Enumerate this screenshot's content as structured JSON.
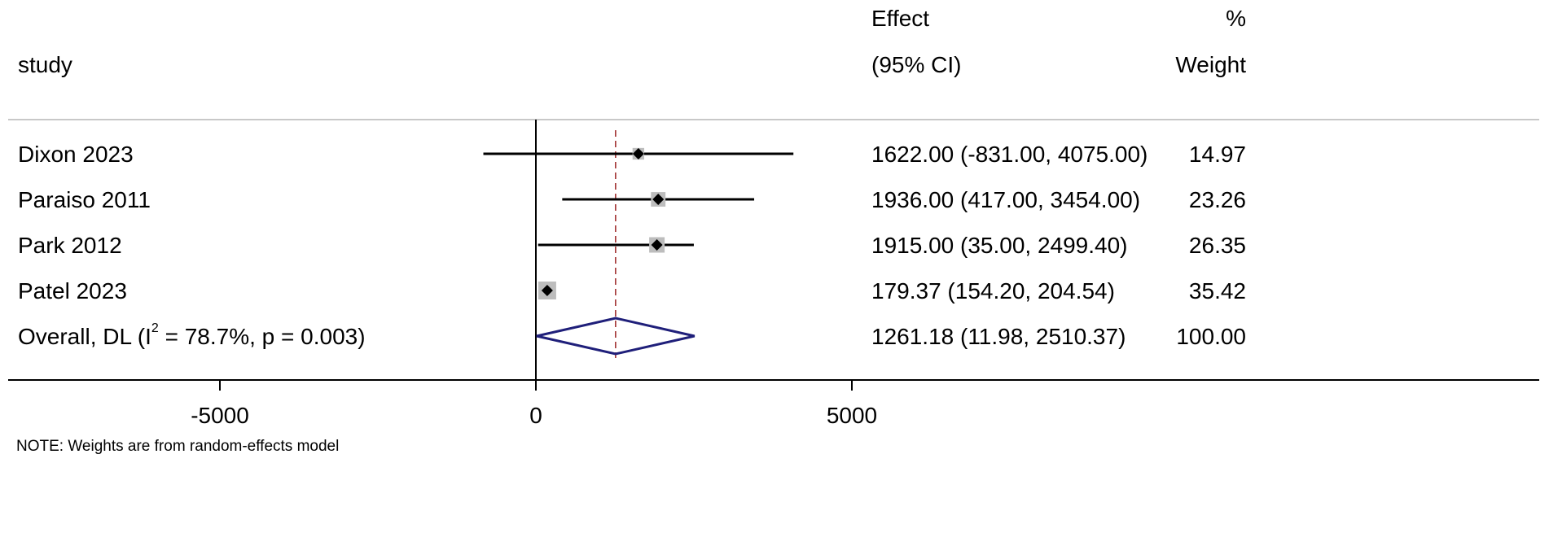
{
  "chart_data": {
    "type": "forest",
    "headers": {
      "study": "study",
      "effect_line1": "Effect",
      "effect_line2": "(95% CI)",
      "weight_line1": "%",
      "weight_line2": "Weight"
    },
    "studies": [
      {
        "name": "Dixon 2023",
        "effect": 1622.0,
        "lower": -831.0,
        "upper": 4075.0,
        "ci_text": "1622.00 (-831.00, 4075.00)",
        "weight": 14.97,
        "weight_text": "14.97"
      },
      {
        "name": "Paraiso 2011",
        "effect": 1936.0,
        "lower": 417.0,
        "upper": 3454.0,
        "ci_text": "1936.00 (417.00, 3454.00)",
        "weight": 23.26,
        "weight_text": "23.26"
      },
      {
        "name": "Park 2012",
        "effect": 1915.0,
        "lower": 35.0,
        "upper": 2499.4,
        "ci_text": "1915.00 (35.00, 2499.40)",
        "weight": 26.35,
        "weight_text": "26.35"
      },
      {
        "name": "Patel 2023",
        "effect": 179.37,
        "lower": 154.2,
        "upper": 204.54,
        "ci_text": "179.37 (154.20, 204.54)",
        "weight": 35.42,
        "weight_text": "35.42"
      }
    ],
    "overall": {
      "label_prefix": "Overall, DL (I",
      "label_sup": "2",
      "label_suffix": " = 78.7%, p = 0.003)",
      "effect": 1261.18,
      "lower": 11.98,
      "upper": 2510.37,
      "ci_text": "1261.18 (11.98, 2510.37)",
      "weight_text": "100.00"
    },
    "x_ticks": [
      -5000,
      0,
      5000
    ],
    "x_tick_labels": [
      "-5000",
      "0",
      "5000"
    ],
    "xlim": [
      -8500,
      11500
    ],
    "note": "NOTE: Weights are from random-effects model",
    "colors": {
      "ci_line": "#000000",
      "weight_box": "#bdbdbd",
      "point": "#000000",
      "overall_diamond": "#1f1f7a",
      "overall_line": "#a03030",
      "header_rule": "#c8c8c8"
    }
  }
}
